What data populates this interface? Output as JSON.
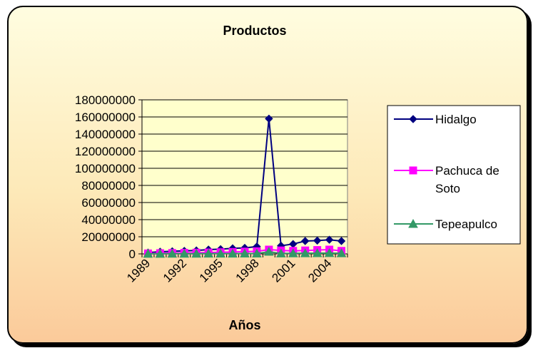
{
  "chart_data": {
    "type": "line",
    "title": "Productos",
    "xlabel": "Años",
    "ylabel": "",
    "x": [
      1989,
      1990,
      1991,
      1992,
      1993,
      1994,
      1995,
      1996,
      1997,
      1998,
      1999,
      2000,
      2001,
      2002,
      2003,
      2004,
      2005
    ],
    "x_tick_labels": [
      "1989",
      "1992",
      "1995",
      "1998",
      "2001",
      "2004"
    ],
    "ylim": [
      0,
      180000000
    ],
    "y_ticks": [
      0,
      20000000,
      40000000,
      60000000,
      80000000,
      100000000,
      120000000,
      140000000,
      160000000,
      180000000
    ],
    "grid": "horizontal",
    "legend_position": "right",
    "series": [
      {
        "name": "Hidalgo",
        "color": "#000080",
        "marker": "diamond",
        "values": [
          1500000,
          2500000,
          3000000,
          3500000,
          4000000,
          5000000,
          5500000,
          6500000,
          7000000,
          8500000,
          158000000,
          9500000,
          11500000,
          15000000,
          15500000,
          16500000,
          15000000
        ]
      },
      {
        "name": "Pachuca de Soto",
        "color": "#FF00FF",
        "marker": "square",
        "values": [
          500000,
          800000,
          1000000,
          1200000,
          1400000,
          1600000,
          1900000,
          2200000,
          2600000,
          3000000,
          5000000,
          4000000,
          3500000,
          4000000,
          4500000,
          5000000,
          3500000
        ]
      },
      {
        "name": "Tepeapulco",
        "color": "#339966",
        "marker": "triangle",
        "values": [
          100000,
          150000,
          200000,
          200000,
          250000,
          300000,
          300000,
          350000,
          400000,
          450000,
          2500000,
          500000,
          600000,
          700000,
          800000,
          900000,
          700000
        ]
      }
    ]
  }
}
